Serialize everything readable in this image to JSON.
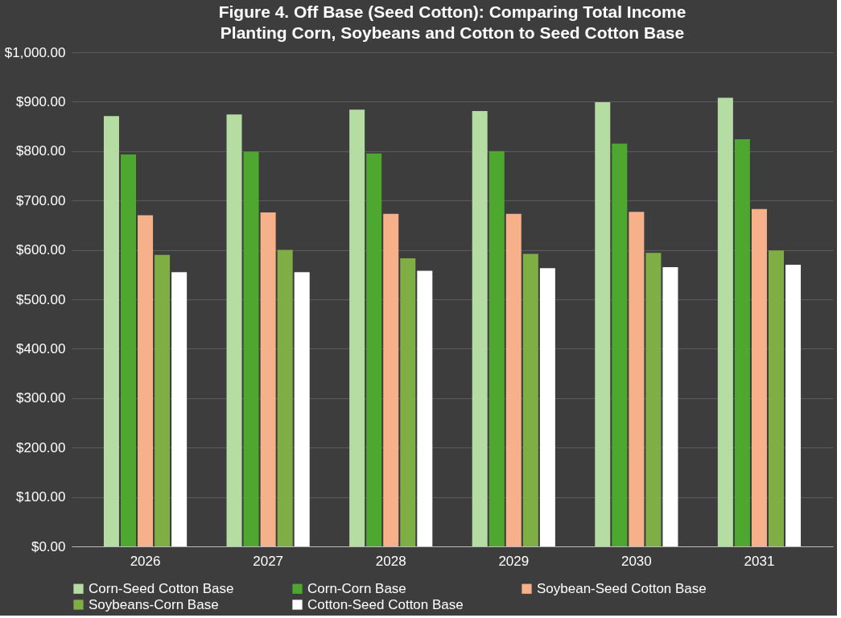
{
  "chart_data": {
    "type": "bar",
    "title": "Figure 4. Off Base (Seed Cotton): Comparing Total Income\nPlanting Corn, Soybeans and Cotton to Seed Cotton Base",
    "categories": [
      "2026",
      "2027",
      "2028",
      "2029",
      "2030",
      "2031"
    ],
    "series": [
      {
        "name": "Corn-Seed Cotton Base",
        "color": "#b5dca3",
        "values": [
          871,
          874,
          884,
          881,
          899,
          908
        ]
      },
      {
        "name": "Corn-Corn Base",
        "color": "#4ea72e",
        "values": [
          793,
          799,
          795,
          800,
          815,
          824
        ]
      },
      {
        "name": "Soybean-Seed Cotton Base",
        "color": "#f6b08a",
        "values": [
          670,
          676,
          673,
          673,
          677,
          683
        ]
      },
      {
        "name": "Soybeans-Corn Base",
        "color": "#7fae45",
        "values": [
          590,
          600,
          583,
          592,
          594,
          599
        ]
      },
      {
        "name": "Cotton-Seed Cotton Base",
        "color": "#ffffff",
        "values": [
          555,
          555,
          558,
          563,
          565,
          570
        ]
      }
    ],
    "ylim": [
      0,
      1000
    ],
    "yticks": [
      {
        "value": 0,
        "label": "$0.00"
      },
      {
        "value": 100,
        "label": "$100.00"
      },
      {
        "value": 200,
        "label": "$200.00"
      },
      {
        "value": 300,
        "label": "$300.00"
      },
      {
        "value": 400,
        "label": "$400.00"
      },
      {
        "value": 500,
        "label": "$500.00"
      },
      {
        "value": 600,
        "label": "$600.00"
      },
      {
        "value": 700,
        "label": "$700.00"
      },
      {
        "value": 800,
        "label": "$800.00"
      },
      {
        "value": 900,
        "label": "$900.00"
      },
      {
        "value": 1000,
        "label": "$1,000.00"
      }
    ],
    "grid": "y",
    "legend": "bottom"
  }
}
